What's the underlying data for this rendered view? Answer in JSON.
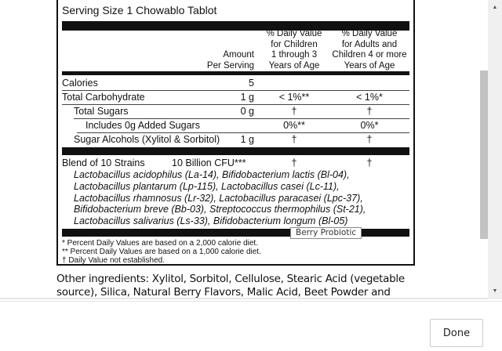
{
  "label": {
    "serving_size": "Serving Size 1 Chowablo Tablot",
    "headers": {
      "amount": "Amount\nPer Serving",
      "children": "% Daily Value\nfor Children\n1 through 3\nYears of Age",
      "adults": "% Daily Value\nfor Adults and\nChildren 4 or more\nYears of Age"
    },
    "rows": [
      {
        "name": "Calories",
        "amount": "5",
        "children": "",
        "adults": ""
      },
      {
        "name": "Total Carbohydrate",
        "amount": "1 g",
        "children": "< 1%**",
        "adults": "< 1%*"
      },
      {
        "name": "Total Sugars",
        "amount": "0 g",
        "children": "†",
        "adults": "†"
      },
      {
        "name": "Includes 0g Added Sugars",
        "amount": "",
        "children": "0%**",
        "adults": "0%*"
      },
      {
        "name": "Sugar Alcohols (Xylitol & Sorbitol)",
        "amount": "1 g",
        "children": "†",
        "adults": "†"
      }
    ],
    "blend": {
      "name": "Blend of 10 Strains",
      "amount": "10 Billion CFU***",
      "children": "†",
      "adults": "†"
    },
    "strains": [
      "Lactobacillus acidophilus (La-14), Bifidobacterium lactis (Bl-04),",
      "Lactobacillus plantarum (Lp-115), Lactobacillus casei (Lc-11),",
      "Lactobacillus rhamnosus (Lr-32), Lactobacillus paracasei (Lpc-37),",
      "Bifidobacterium breve (Bb-03), Streptococcus thermophilus (St-21),",
      "Lactobacillus salivarius (Ls-33), Bifidobacterium longum (Bl-05)"
    ],
    "footnotes": [
      "* Percent Daily Values are based on a 2,000 calorie diet.",
      "** Percent Daily Values are based on a 1,000 calorie diet.",
      "† Daily Value not established."
    ]
  },
  "other_ingredients": "Other ingredients: Xylitol, Sorbitol, Cellulose, Stearic Acid (vegetable source), Silica, Natural Berry Flavors, Malic Acid, Beet Powder and",
  "tooltip": "Berry Probiotic",
  "footer": {
    "done_label": "Done"
  },
  "icons": {
    "scroll_up": "▲",
    "scroll_down": "▼"
  }
}
